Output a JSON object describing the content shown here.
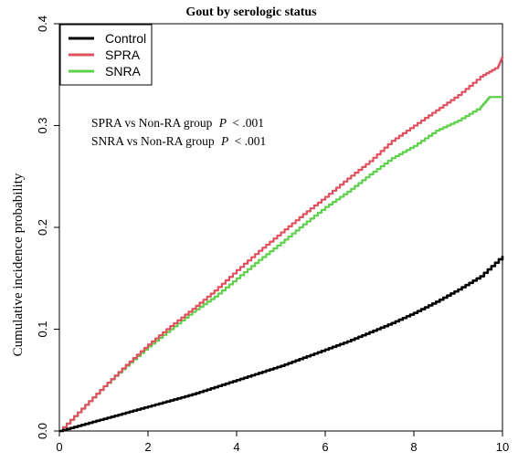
{
  "chart_data": {
    "type": "line",
    "title": "Gout by serologic status",
    "xlabel": "",
    "ylabel": "Cumulative incidence probability",
    "xlim": [
      0,
      10
    ],
    "ylim": [
      0,
      0.4
    ],
    "x_ticks": [
      0,
      2,
      4,
      6,
      8,
      10
    ],
    "y_ticks": [
      0.0,
      0.1,
      0.2,
      0.3,
      0.4
    ],
    "y_tick_labels": [
      "0.0",
      "0.1",
      "0.2",
      "0.3",
      "0.4"
    ],
    "grid": false,
    "legend_position": "top-left",
    "series": [
      {
        "name": "Control",
        "color": "#000000",
        "x": [
          0,
          0.5,
          1,
          1.5,
          2,
          2.5,
          3,
          3.5,
          4,
          4.5,
          5,
          5.5,
          6,
          6.5,
          7,
          7.5,
          8,
          8.5,
          9,
          9.5,
          10
        ],
        "y": [
          0,
          0.006,
          0.012,
          0.018,
          0.024,
          0.03,
          0.036,
          0.043,
          0.05,
          0.057,
          0.064,
          0.072,
          0.08,
          0.088,
          0.097,
          0.106,
          0.116,
          0.127,
          0.139,
          0.152,
          0.172
        ]
      },
      {
        "name": "SPRA",
        "color": "#e0505e",
        "x": [
          0,
          0.5,
          1,
          1.5,
          2,
          2.5,
          3,
          3.5,
          4,
          4.5,
          5,
          5.5,
          6,
          6.5,
          7,
          7.5,
          8,
          8.5,
          9,
          9.5,
          9.9,
          10
        ],
        "y": [
          0,
          0.022,
          0.044,
          0.065,
          0.085,
          0.103,
          0.12,
          0.138,
          0.158,
          0.177,
          0.195,
          0.213,
          0.23,
          0.248,
          0.265,
          0.285,
          0.3,
          0.315,
          0.33,
          0.348,
          0.358,
          0.368
        ]
      },
      {
        "name": "SNRA",
        "color": "#5ed14a",
        "x": [
          0,
          0.5,
          1,
          1.5,
          2,
          2.5,
          3,
          3.5,
          4,
          4.5,
          5,
          5.5,
          6,
          6.5,
          7,
          7.5,
          8,
          8.5,
          9,
          9.5,
          9.7,
          10
        ],
        "y": [
          0,
          0.022,
          0.044,
          0.064,
          0.083,
          0.1,
          0.117,
          0.132,
          0.15,
          0.168,
          0.185,
          0.203,
          0.22,
          0.235,
          0.252,
          0.268,
          0.28,
          0.295,
          0.305,
          0.318,
          0.328,
          0.328
        ]
      }
    ],
    "annotations": [
      {
        "label": "SPRA vs Non-RA group",
        "p_symbol": "P",
        "p_value": "< .001"
      },
      {
        "label": "SNRA vs Non-RA group",
        "p_symbol": "P",
        "p_value": "< .001"
      }
    ]
  }
}
